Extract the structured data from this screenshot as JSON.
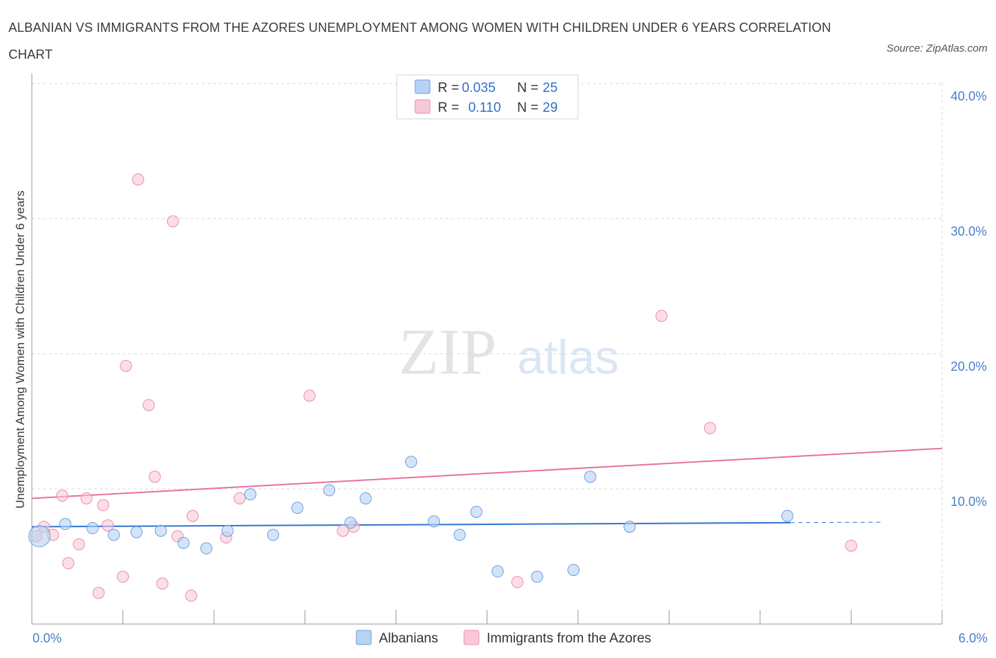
{
  "title": "ALBANIAN VS IMMIGRANTS FROM THE AZORES UNEMPLOYMENT AMONG WOMEN WITH CHILDREN UNDER 6 YEARS CORRELATION CHART",
  "source": "Source: ZipAtlas.com",
  "watermark": {
    "zip": "ZIP",
    "atlas": "atlas"
  },
  "colors": {
    "albanian_fill": "#b8d2f4",
    "albanian_stroke": "#6b9fe0",
    "albanian_line": "#2f74d0",
    "azores_fill": "#f8c8d6",
    "azores_stroke": "#ea8fab",
    "azores_line": "#e8729a",
    "grid": "#d9d9d9",
    "tick": "#4a7fc8"
  },
  "legend": {
    "rows": [
      {
        "r_label": "R =",
        "r_value": "0.035",
        "n_label": "N =",
        "n_value": "25"
      },
      {
        "r_label": "R =",
        "r_value": "0.110",
        "n_label": "N =",
        "n_value": "29"
      }
    ]
  },
  "chart_data": {
    "type": "scatter",
    "title": "ALBANIAN VS IMMIGRANTS FROM THE AZORES UNEMPLOYMENT AMONG WOMEN WITH CHILDREN UNDER 6 YEARS CORRELATION CHART",
    "xlabel": "",
    "ylabel": "Unemployment Among Women with Children Under 6 years",
    "xlim": [
      0,
      6
    ],
    "ylim": [
      0,
      40
    ],
    "x_tick_labels": [
      "0.0%",
      "6.0%"
    ],
    "y_ticks": [
      10,
      20,
      30,
      40
    ],
    "y_tick_labels": [
      "10.0%",
      "20.0%",
      "30.0%",
      "40.0%"
    ],
    "series": [
      {
        "name": "Albanians",
        "r": 0.035,
        "n": 25,
        "trend": {
          "x0": 0.0,
          "y0": 7.2,
          "x1": 5.0,
          "y1": 7.5,
          "dash_to_x": 5.6
        },
        "points": [
          {
            "x": 0.05,
            "y": 6.5,
            "big": true
          },
          {
            "x": 0.22,
            "y": 7.4
          },
          {
            "x": 0.4,
            "y": 7.1
          },
          {
            "x": 0.54,
            "y": 6.6
          },
          {
            "x": 0.69,
            "y": 6.8
          },
          {
            "x": 0.85,
            "y": 6.9
          },
          {
            "x": 1.0,
            "y": 6.0
          },
          {
            "x": 1.15,
            "y": 5.6
          },
          {
            "x": 1.29,
            "y": 6.9
          },
          {
            "x": 1.44,
            "y": 9.6
          },
          {
            "x": 1.59,
            "y": 6.6
          },
          {
            "x": 1.75,
            "y": 8.6
          },
          {
            "x": 1.96,
            "y": 9.9
          },
          {
            "x": 2.1,
            "y": 7.5
          },
          {
            "x": 2.2,
            "y": 9.3
          },
          {
            "x": 2.5,
            "y": 12.0
          },
          {
            "x": 2.65,
            "y": 7.6
          },
          {
            "x": 2.82,
            "y": 6.6
          },
          {
            "x": 2.93,
            "y": 8.3
          },
          {
            "x": 3.07,
            "y": 3.9
          },
          {
            "x": 3.33,
            "y": 3.5
          },
          {
            "x": 3.57,
            "y": 4.0
          },
          {
            "x": 3.68,
            "y": 10.9
          },
          {
            "x": 3.94,
            "y": 7.2
          },
          {
            "x": 4.98,
            "y": 8.0
          }
        ]
      },
      {
        "name": "Immigrants from the Azores",
        "r": 0.11,
        "n": 29,
        "trend": {
          "x0": 0.0,
          "y0": 9.3,
          "x1": 6.0,
          "y1": 13.0
        },
        "points": [
          {
            "x": 0.03,
            "y": 6.5
          },
          {
            "x": 0.08,
            "y": 7.2
          },
          {
            "x": 0.14,
            "y": 6.6
          },
          {
            "x": 0.2,
            "y": 9.5
          },
          {
            "x": 0.24,
            "y": 4.5
          },
          {
            "x": 0.31,
            "y": 5.9
          },
          {
            "x": 0.36,
            "y": 9.3
          },
          {
            "x": 0.44,
            "y": 2.3
          },
          {
            "x": 0.47,
            "y": 8.8
          },
          {
            "x": 0.5,
            "y": 7.3
          },
          {
            "x": 0.6,
            "y": 3.5
          },
          {
            "x": 0.62,
            "y": 19.1
          },
          {
            "x": 0.7,
            "y": 32.9
          },
          {
            "x": 0.77,
            "y": 16.2
          },
          {
            "x": 0.81,
            "y": 10.9
          },
          {
            "x": 0.86,
            "y": 3.0
          },
          {
            "x": 0.93,
            "y": 29.8
          },
          {
            "x": 0.96,
            "y": 6.5
          },
          {
            "x": 1.05,
            "y": 2.1
          },
          {
            "x": 1.06,
            "y": 8.0
          },
          {
            "x": 1.28,
            "y": 6.4
          },
          {
            "x": 1.37,
            "y": 9.3
          },
          {
            "x": 1.83,
            "y": 16.9
          },
          {
            "x": 2.05,
            "y": 6.9
          },
          {
            "x": 2.12,
            "y": 7.2
          },
          {
            "x": 3.2,
            "y": 3.1
          },
          {
            "x": 4.15,
            "y": 22.8
          },
          {
            "x": 4.47,
            "y": 14.5
          },
          {
            "x": 5.4,
            "y": 5.8
          }
        ]
      }
    ]
  }
}
